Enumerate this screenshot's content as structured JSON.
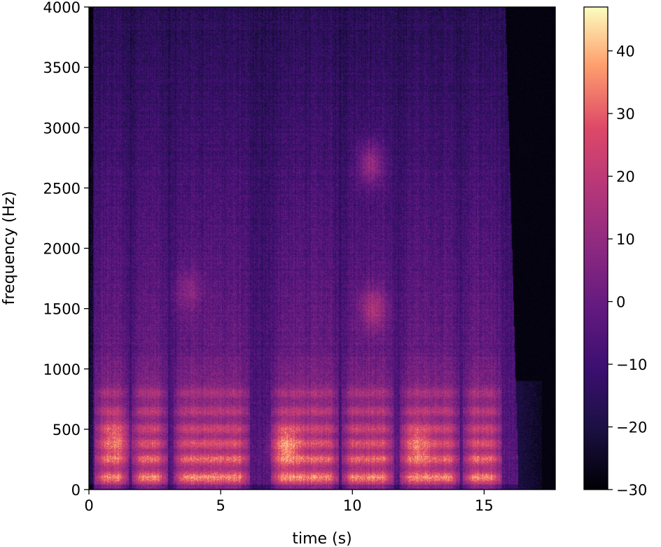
{
  "chart_data": {
    "type": "heatmap",
    "title": "",
    "xlabel": "time (s)",
    "ylabel": "frequency (Hz)",
    "xlim": [
      0,
      17.7
    ],
    "ylim": [
      0,
      4000
    ],
    "x_ticks": [
      0,
      5,
      10,
      15
    ],
    "x_tick_labels": [
      "0",
      "5",
      "10",
      "15"
    ],
    "y_ticks": [
      0,
      500,
      1000,
      1500,
      2000,
      2500,
      3000,
      3500,
      4000
    ],
    "y_tick_labels": [
      "0",
      "500",
      "1000",
      "1500",
      "2000",
      "2500",
      "3000",
      "3500",
      "4000"
    ],
    "colormap": "magma",
    "colorbar": {
      "vmin": -30,
      "vmax": 47,
      "ticks": [
        -30,
        -20,
        -10,
        0,
        10,
        20,
        30,
        40
      ],
      "tick_labels": [
        "−30",
        "−20",
        "−10",
        "0",
        "10",
        "20",
        "30",
        "40"
      ]
    },
    "grid": false,
    "legend": "none",
    "speech_segments_s": [
      [
        0.2,
        1.5
      ],
      [
        1.6,
        3.0
      ],
      [
        3.2,
        6.1
      ],
      [
        6.9,
        9.5
      ],
      [
        9.6,
        11.6
      ],
      [
        11.8,
        14.1
      ],
      [
        14.2,
        15.7
      ]
    ],
    "silence_after_s": 16.0,
    "bright_bands_hz": [
      100,
      250,
      380,
      500,
      650,
      800
    ],
    "notable_regions": [
      {
        "t": 10.7,
        "f": 2700,
        "level_db": 15
      },
      {
        "t": 10.8,
        "f": 1500,
        "level_db": 20
      },
      {
        "t": 3.8,
        "f": 1650,
        "level_db": 10
      },
      {
        "t": 7.5,
        "f": 350,
        "level_db": 40
      },
      {
        "t": 12.5,
        "f": 350,
        "level_db": 35
      },
      {
        "t": 1.0,
        "f": 400,
        "level_db": 35
      }
    ]
  }
}
